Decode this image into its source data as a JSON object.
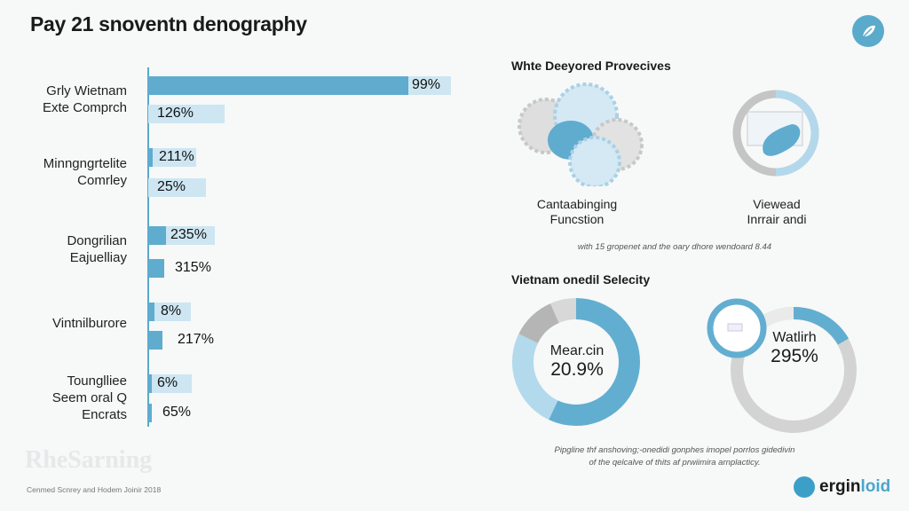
{
  "title": "Pay 21 snoventn denography",
  "colors": {
    "accent": "#5faccf",
    "accent_light": "#cde6f2",
    "gray": "#c8c8c8"
  },
  "chart_data": {
    "type": "bar",
    "orientation": "horizontal",
    "title": "Pay 21 snoventn denography",
    "categories": [
      "Grly Wietnam Exte Comprch",
      "Minngngrtelite Comrley",
      "Dongrilian Eajuelliay",
      "Vintnilburore",
      "Tounglliee Seem oral Q Encrats"
    ],
    "series_labels": [
      [
        "99%",
        "126%"
      ],
      [
        "211%",
        "25%"
      ],
      [
        "235%",
        "315%"
      ],
      [
        "8%",
        "217%"
      ],
      [
        "6%",
        "65%"
      ]
    ],
    "grid": false
  },
  "groups": [
    {
      "label": "Grly Wietnam\nExte Comprch"
    },
    {
      "label": "Minngngrtelite\nComrley"
    },
    {
      "label": "Dongrilian\nEajuelliay"
    },
    {
      "label": "Vintnilburore"
    },
    {
      "label": "Tounglliee\nSeem oral Q\nEncrats"
    }
  ],
  "panel1": {
    "title": "Whte Deeyored Provecives",
    "left_caption": "Cantaabinging\nFuncstion",
    "right_caption": "Viewead\nInrrair andi",
    "note": "with 15 gropenet and the oary dhore wendoard 8.44"
  },
  "panel2": {
    "title": "Vietnam onedil Selecity",
    "donut1": {
      "label": "Mear.cin",
      "value": "20.9%"
    },
    "donut2": {
      "label": "Watlirh",
      "value": "295%"
    },
    "note_line1": "Pipgline thf anshoving;-onedidi gonphes imopel porrlos gidedivin",
    "note_line2": "of the qelcalve of thits af prwiimira arnplacticy."
  },
  "watermark": "RheSarning",
  "source": "Cenmed Scnrey and Hodem Joinir 2018",
  "logo": {
    "part1": "ergin",
    "part2": "loid"
  },
  "icons": {
    "top_right": "leaf-icon",
    "logo": "person-icon"
  }
}
